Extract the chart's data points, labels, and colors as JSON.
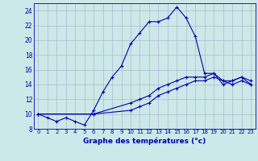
{
  "xlabel": "Graphe des températures (°c)",
  "background_color": "#cce8e8",
  "line_color": "#0000aa",
  "grid_color": "#aabbcc",
  "x_hours": [
    0,
    1,
    2,
    3,
    4,
    5,
    6,
    7,
    8,
    9,
    10,
    11,
    12,
    13,
    14,
    15,
    16,
    17,
    18,
    19,
    20,
    21,
    22,
    23
  ],
  "series1": [
    10.0,
    9.5,
    9.0,
    9.5,
    9.0,
    8.5,
    10.5,
    13.0,
    15.0,
    16.5,
    19.5,
    21.0,
    22.5,
    22.5,
    23.0,
    24.5,
    23.0,
    20.5,
    15.5,
    15.5,
    14.0,
    14.5,
    15.0,
    14.0
  ],
  "series2": [
    10.0,
    null,
    null,
    null,
    null,
    null,
    10.0,
    null,
    null,
    null,
    10.5,
    11.0,
    11.5,
    12.5,
    13.0,
    13.5,
    14.0,
    14.5,
    14.5,
    15.0,
    14.5,
    14.0,
    14.5,
    14.0
  ],
  "series3": [
    10.0,
    null,
    null,
    null,
    null,
    null,
    10.0,
    null,
    null,
    null,
    11.5,
    12.0,
    12.5,
    13.5,
    14.0,
    14.5,
    15.0,
    15.0,
    15.0,
    15.5,
    14.5,
    14.5,
    15.0,
    14.5
  ],
  "ylim": [
    8,
    25
  ],
  "yticks": [
    8,
    10,
    12,
    14,
    16,
    18,
    20,
    22,
    24
  ],
  "xlim_min": -0.5,
  "xlim_max": 23.5,
  "xticks": [
    0,
    1,
    2,
    3,
    4,
    5,
    6,
    7,
    8,
    9,
    10,
    11,
    12,
    13,
    14,
    15,
    16,
    17,
    18,
    19,
    20,
    21,
    22,
    23
  ]
}
